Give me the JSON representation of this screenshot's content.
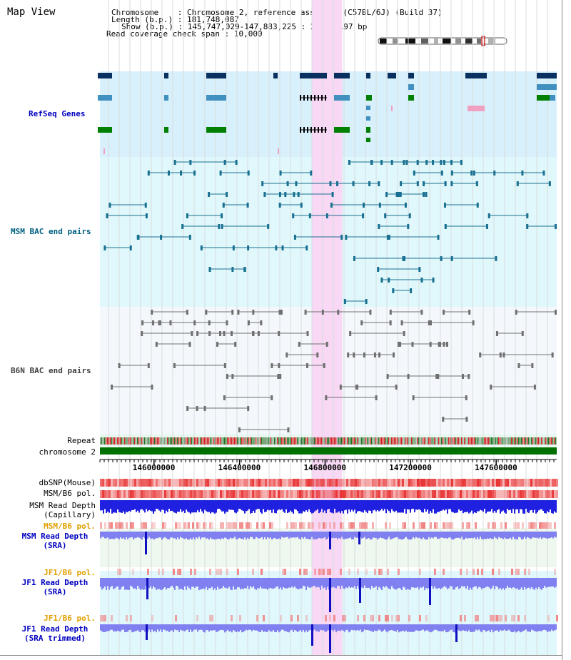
{
  "header": {
    "title": "Map View",
    "chromosome_key": "Chromosome",
    "chromosome_value": "Chromosome 2, reference assembly (C57BL/6J) (Build 37)",
    "length_key": "Length (b.p.)",
    "length_value": "181,748,087",
    "show_key": "Show (b.p.)",
    "show_value": "145,747,029-147,883,225 : 2,136,197 bp",
    "coverage_key": "Read coverage check span",
    "coverage_value": "10,000"
  },
  "tracks": {
    "refseq": "RefSeq Genes",
    "msm_bac": "MSM BAC end pairs",
    "b6n_bac": "B6N BAC end pairs",
    "repeat": "Repeat",
    "chromosome": "chromosome 2",
    "dbsnp": "dbSNP(Mouse)",
    "msm_b6_pol": "MSM/B6 pol.",
    "msm_depth_cap": "MSM Read Depth\n(Capillary)",
    "msm_b6_pol_sra": "MSM/B6 pol.",
    "msm_depth_sra": "MSM Read Depth\n(SRA)",
    "jf1_b6_pol": "JF1/B6 pol.",
    "jf1_depth_sra": "JF1 Read Depth\n(SRA)",
    "jf1_b6_pol_trim": "JF1/B6 pol.",
    "jf1_depth_trim": "JF1 Read Depth\n(SRA trimmed)"
  },
  "axis": {
    "ticks": [
      146000000,
      146400000,
      146800000,
      147200000,
      147600000
    ],
    "tick_labels": [
      "146000000",
      "146400000",
      "146800000",
      "147200000",
      "147600000"
    ]
  },
  "highlight": {
    "start_bp": 146740000,
    "end_bp": 146880000,
    "color": "#f8d8f4"
  },
  "colors": {
    "refseq_bg": "#d8f0fc",
    "msm_bg": "#e0f8fc",
    "b6n_bg": "#f4f8fc",
    "refseq_label": "#0000c0",
    "msm_label": "#006080",
    "b6n_label": "#404040",
    "pol_label": "#e0a000",
    "depth_label": "#0000c0",
    "gene_dark": "#0a3060",
    "gene_light": "#4090c0",
    "gene_green": "#008000",
    "gene_pink": "#f0a0c0",
    "chromosome_bar": "#007000",
    "depth_blue": "#2020e0",
    "depth_sra": "#8080f0"
  }
}
